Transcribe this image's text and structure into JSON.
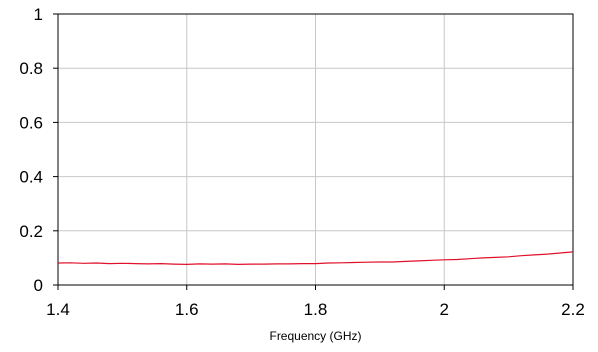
{
  "chart_data": {
    "type": "line",
    "title": "",
    "xlabel": "Frequency (GHz)",
    "ylabel": "",
    "xlim": [
      1.4,
      2.2
    ],
    "ylim": [
      0,
      1
    ],
    "grid": true,
    "legend": "none",
    "x_ticks": [
      1.4,
      1.6,
      1.8,
      2.0,
      2.2
    ],
    "x_tick_labels": [
      "1.4",
      "1.6",
      "1.8",
      "2",
      "2.2"
    ],
    "y_ticks": [
      0,
      0.2,
      0.4,
      0.6,
      0.8,
      1.0
    ],
    "y_tick_labels": [
      "0",
      "0.2",
      "0.4",
      "0.6",
      "0.8",
      "1"
    ],
    "colors": {
      "series": "#e0102a",
      "grid": "#c8c8c8",
      "frame": "#000000"
    },
    "series": [
      {
        "x": [
          1.4,
          1.42,
          1.44,
          1.46,
          1.48,
          1.5,
          1.52,
          1.54,
          1.56,
          1.58,
          1.6,
          1.62,
          1.64,
          1.66,
          1.68,
          1.7,
          1.72,
          1.74,
          1.76,
          1.78,
          1.8,
          1.82,
          1.84,
          1.86,
          1.88,
          1.9,
          1.92,
          1.94,
          1.96,
          1.98,
          2.0,
          2.02,
          2.04,
          2.06,
          2.08,
          2.1,
          2.12,
          2.14,
          2.16,
          2.18,
          2.2
        ],
        "y": [
          0.081,
          0.082,
          0.08,
          0.081,
          0.079,
          0.08,
          0.079,
          0.078,
          0.079,
          0.077,
          0.076,
          0.078,
          0.077,
          0.078,
          0.076,
          0.077,
          0.077,
          0.078,
          0.078,
          0.079,
          0.079,
          0.081,
          0.082,
          0.083,
          0.084,
          0.085,
          0.085,
          0.087,
          0.089,
          0.091,
          0.093,
          0.094,
          0.097,
          0.1,
          0.102,
          0.104,
          0.108,
          0.111,
          0.114,
          0.118,
          0.122
        ]
      }
    ]
  }
}
